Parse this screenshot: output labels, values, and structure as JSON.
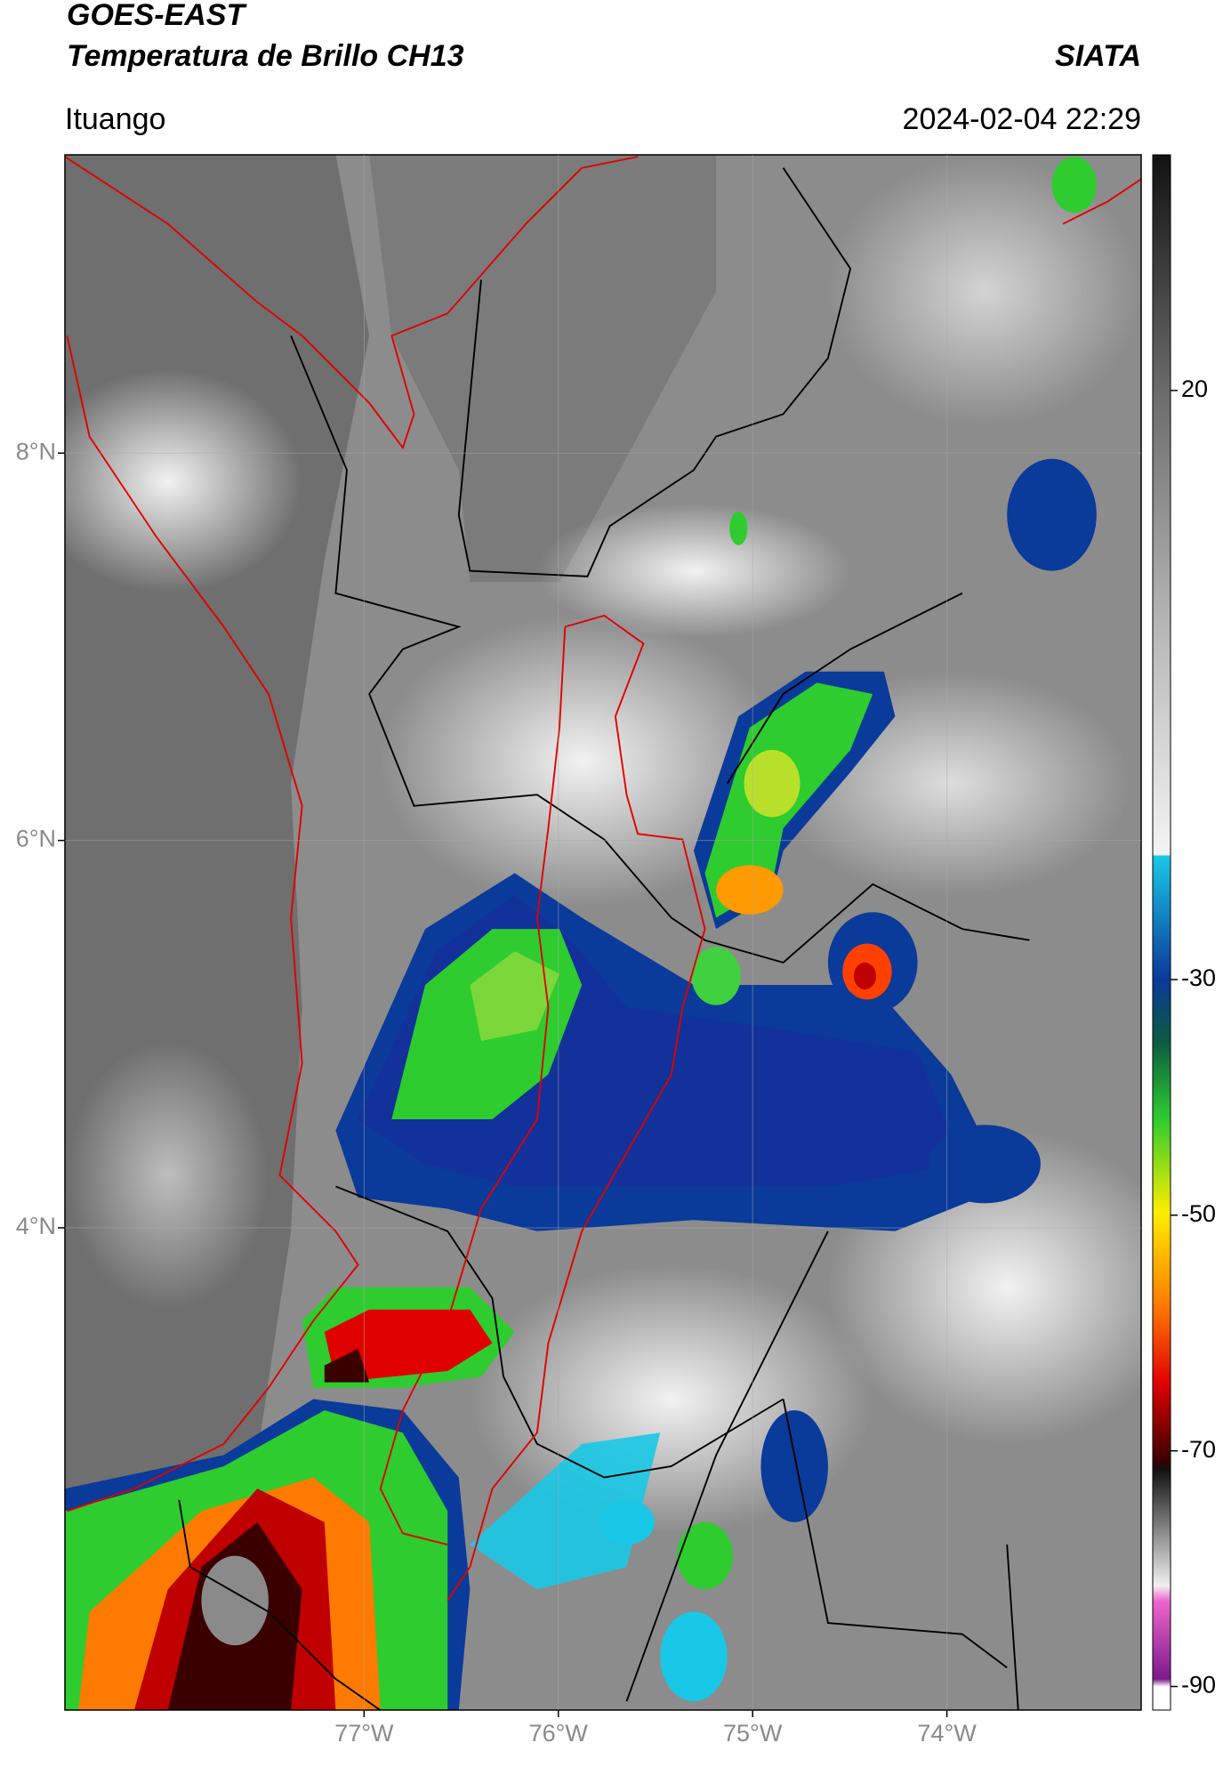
{
  "header": {
    "title_line1": "GOES-EAST",
    "title_line2": "Temperatura de Brillo CH13",
    "source": "SIATA",
    "region": "Ituango",
    "timestamp": "2024-02-04 22:29"
  },
  "map": {
    "latlim": [
      1.51,
      9.54
    ],
    "lonlim": [
      -78.54,
      -73.0
    ],
    "lat_ticks": [
      {
        "value": 8,
        "label": "8°N"
      },
      {
        "value": 6,
        "label": "6°N"
      },
      {
        "value": 4,
        "label": "4°N"
      }
    ],
    "lon_ticks": [
      {
        "value": -77,
        "label": "77°W"
      },
      {
        "value": -76,
        "label": "76°W"
      },
      {
        "value": -75,
        "label": "75°W"
      },
      {
        "value": -74,
        "label": "74°W"
      }
    ]
  },
  "colorbar": {
    "lim": [
      -92,
      40
    ],
    "ticks": [
      20,
      -30,
      -50,
      -70,
      -90
    ]
  }
}
